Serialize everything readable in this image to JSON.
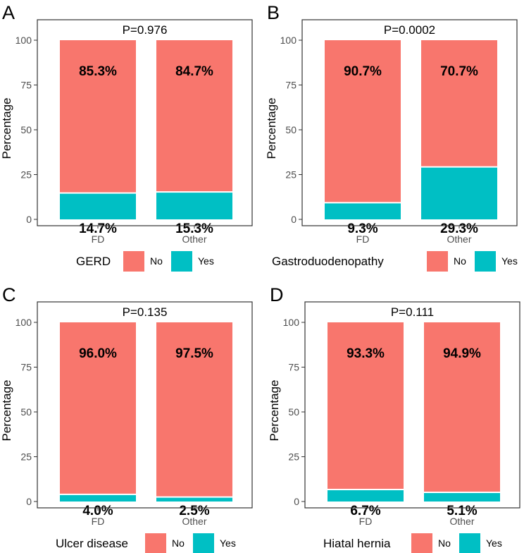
{
  "colors": {
    "no": "#F8766D",
    "yes": "#00BFC4",
    "frame": "#333333",
    "text": "#000000",
    "tick": "#4d4d4d"
  },
  "chart_data": [
    {
      "type": "bar",
      "stacked": true,
      "panel": "A",
      "title": "P=0.976",
      "categories": [
        "FD",
        "Other"
      ],
      "series": [
        {
          "name": "No",
          "values": [
            85.3,
            84.7
          ],
          "labels": [
            "85.3%",
            "84.7%"
          ]
        },
        {
          "name": "Yes",
          "values": [
            14.7,
            15.3
          ],
          "labels": [
            "14.7%",
            "15.3%"
          ]
        }
      ],
      "legend_title": "GERD",
      "ylabel": "Percentage",
      "yticks": [
        "0",
        "25",
        "50",
        "75",
        "100"
      ],
      "ylim": [
        0,
        100
      ],
      "legend_position": "bottom"
    },
    {
      "type": "bar",
      "stacked": true,
      "panel": "B",
      "title": "P=0.0002",
      "categories": [
        "FD",
        "Other"
      ],
      "series": [
        {
          "name": "No",
          "values": [
            90.7,
            70.7
          ],
          "labels": [
            "90.7%",
            "70.7%"
          ]
        },
        {
          "name": "Yes",
          "values": [
            9.3,
            29.3
          ],
          "labels": [
            "9.3%",
            "29.3%"
          ]
        }
      ],
      "legend_title": "Gastroduodenopathy",
      "ylabel": "Percentage",
      "yticks": [
        "0",
        "25",
        "50",
        "75",
        "100"
      ],
      "ylim": [
        0,
        100
      ],
      "legend_position": "bottom"
    },
    {
      "type": "bar",
      "stacked": true,
      "panel": "C",
      "title": "P=0.135",
      "categories": [
        "FD",
        "Other"
      ],
      "series": [
        {
          "name": "No",
          "values": [
            96.0,
            97.5
          ],
          "labels": [
            "96.0%",
            "97.5%"
          ]
        },
        {
          "name": "Yes",
          "values": [
            4.0,
            2.5
          ],
          "labels": [
            "4.0%",
            "2.5%"
          ]
        }
      ],
      "legend_title": "Ulcer disease",
      "ylabel": "Percentage",
      "yticks": [
        "0",
        "25",
        "50",
        "75",
        "100"
      ],
      "ylim": [
        0,
        100
      ],
      "legend_position": "bottom"
    },
    {
      "type": "bar",
      "stacked": true,
      "panel": "D",
      "title": "P=0.111",
      "categories": [
        "FD",
        "Other"
      ],
      "series": [
        {
          "name": "No",
          "values": [
            93.3,
            94.9
          ],
          "labels": [
            "93.3%",
            "94.9%"
          ]
        },
        {
          "name": "Yes",
          "values": [
            6.7,
            5.1
          ],
          "labels": [
            "6.7%",
            "5.1%"
          ]
        }
      ],
      "legend_title": "Hiatal hernia",
      "ylabel": "Percentage",
      "yticks": [
        "0",
        "25",
        "50",
        "75",
        "100"
      ],
      "ylim": [
        0,
        100
      ],
      "legend_position": "bottom"
    }
  ]
}
